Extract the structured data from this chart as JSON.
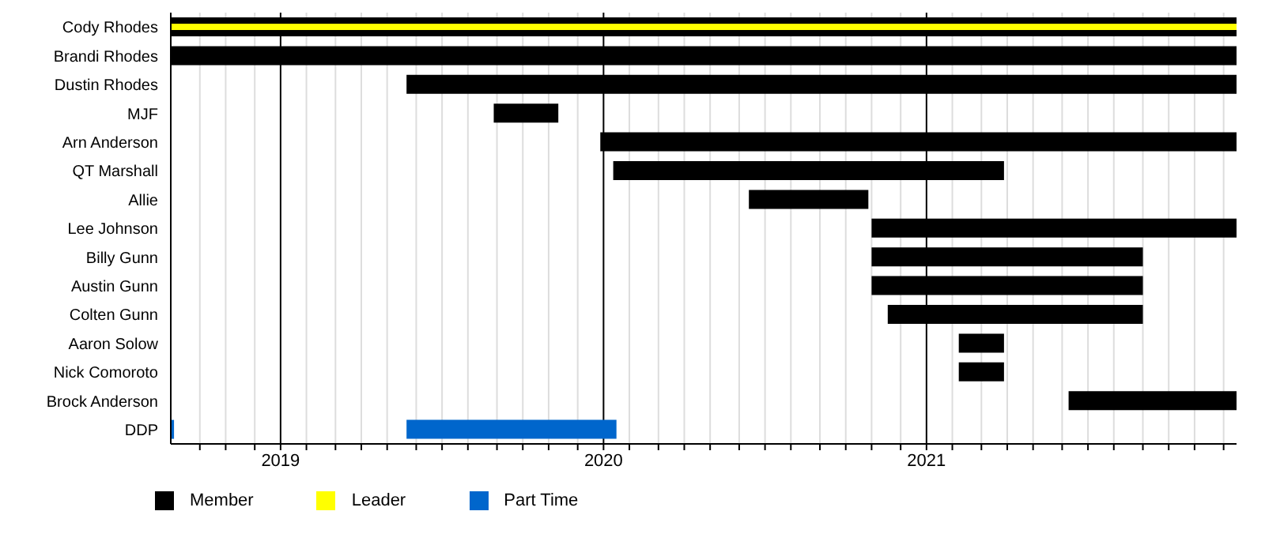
{
  "chart_data": {
    "type": "bar",
    "orientation": "horizontal",
    "categories": [
      "Cody Rhodes",
      "Brandi Rhodes",
      "Dustin Rhodes",
      "MJF",
      "Arn Anderson",
      "QT Marshall",
      "Allie",
      "Lee Johnson",
      "Billy Gunn",
      "Austin Gunn",
      "Colten Gunn",
      "Aaron Solow",
      "Nick Comoroto",
      "Brock Anderson",
      "DDP"
    ],
    "series": [
      {
        "name": "Member",
        "color": "#000000",
        "base": [
          2018.66,
          2018.66,
          2019.39,
          2019.66,
          2019.99,
          2020.03,
          2020.45,
          2020.83,
          2020.83,
          2020.83,
          2020.88,
          2021.1,
          2021.1,
          2021.44,
          null
        ],
        "values": [
          3.3,
          3.3,
          2.57,
          0.2,
          1.97,
          1.21,
          0.37,
          1.13,
          0.84,
          0.84,
          0.79,
          0.14,
          0.14,
          0.52,
          null
        ]
      },
      {
        "name": "Leader",
        "color": "#ffff00",
        "base": [
          2018.66,
          null,
          null,
          null,
          null,
          null,
          null,
          null,
          null,
          null,
          null,
          null,
          null,
          null,
          null
        ],
        "values": [
          3.3,
          null,
          null,
          null,
          null,
          null,
          null,
          null,
          null,
          null,
          null,
          null,
          null,
          null,
          null
        ]
      },
      {
        "name": "Part Time",
        "color": "#0066cc",
        "base": [
          null,
          null,
          null,
          null,
          null,
          null,
          null,
          null,
          null,
          null,
          null,
          null,
          null,
          null,
          2019.39
        ],
        "values": [
          null,
          null,
          null,
          null,
          null,
          null,
          null,
          null,
          null,
          null,
          null,
          null,
          null,
          null,
          0.65
        ]
      },
      {
        "color": "#0066cc",
        "base": [
          null,
          null,
          null,
          null,
          null,
          null,
          null,
          null,
          null,
          null,
          null,
          null,
          null,
          null,
          2018.66
        ],
        "values": [
          null,
          null,
          null,
          null,
          null,
          null,
          null,
          null,
          null,
          null,
          null,
          null,
          null,
          null,
          0.01
        ]
      }
    ],
    "xlim": [
      2018.66,
      2021.96
    ],
    "xticks": [
      {
        "value": 2018.75,
        "label": null
      },
      {
        "value": 2018.83,
        "label": null
      },
      {
        "value": 2018.92,
        "label": null
      },
      2019,
      {
        "value": 2019.08,
        "label": null
      },
      {
        "value": 2019.17,
        "label": null
      },
      {
        "value": 2019.25,
        "label": null
      },
      {
        "value": 2019.33,
        "label": null
      },
      {
        "value": 2019.42,
        "label": null
      },
      {
        "value": 2019.5,
        "label": null
      },
      {
        "value": 2019.58,
        "label": null
      },
      {
        "value": 2019.67,
        "label": null
      },
      {
        "value": 2019.75,
        "label": null
      },
      {
        "value": 2019.83,
        "label": null
      },
      {
        "value": 2019.92,
        "label": null
      },
      2020,
      {
        "value": 2020.08,
        "label": null
      },
      {
        "value": 2020.17,
        "label": null
      },
      {
        "value": 2020.25,
        "label": null
      },
      {
        "value": 2020.33,
        "label": null
      },
      {
        "value": 2020.42,
        "label": null
      },
      {
        "value": 2020.5,
        "label": null
      },
      {
        "value": 2020.58,
        "label": null
      },
      {
        "value": 2020.67,
        "label": null
      },
      {
        "value": 2020.75,
        "label": null
      },
      {
        "value": 2020.83,
        "label": null
      },
      {
        "value": 2020.92,
        "label": null
      },
      2021,
      {
        "value": 2021.08,
        "label": null
      },
      {
        "value": 2021.17,
        "label": null
      },
      {
        "value": 2021.25,
        "label": null
      },
      {
        "value": 2021.33,
        "label": null
      },
      {
        "value": 2021.42,
        "label": null
      },
      {
        "value": 2021.5,
        "label": null
      },
      {
        "value": 2021.58,
        "label": null
      },
      {
        "value": 2021.67,
        "label": null
      },
      {
        "value": 2021.75,
        "label": null
      },
      {
        "value": 2021.83,
        "label": null
      },
      {
        "value": 2021.92,
        "label": null
      }
    ],
    "grid": "x",
    "legend": "bottom left"
  }
}
